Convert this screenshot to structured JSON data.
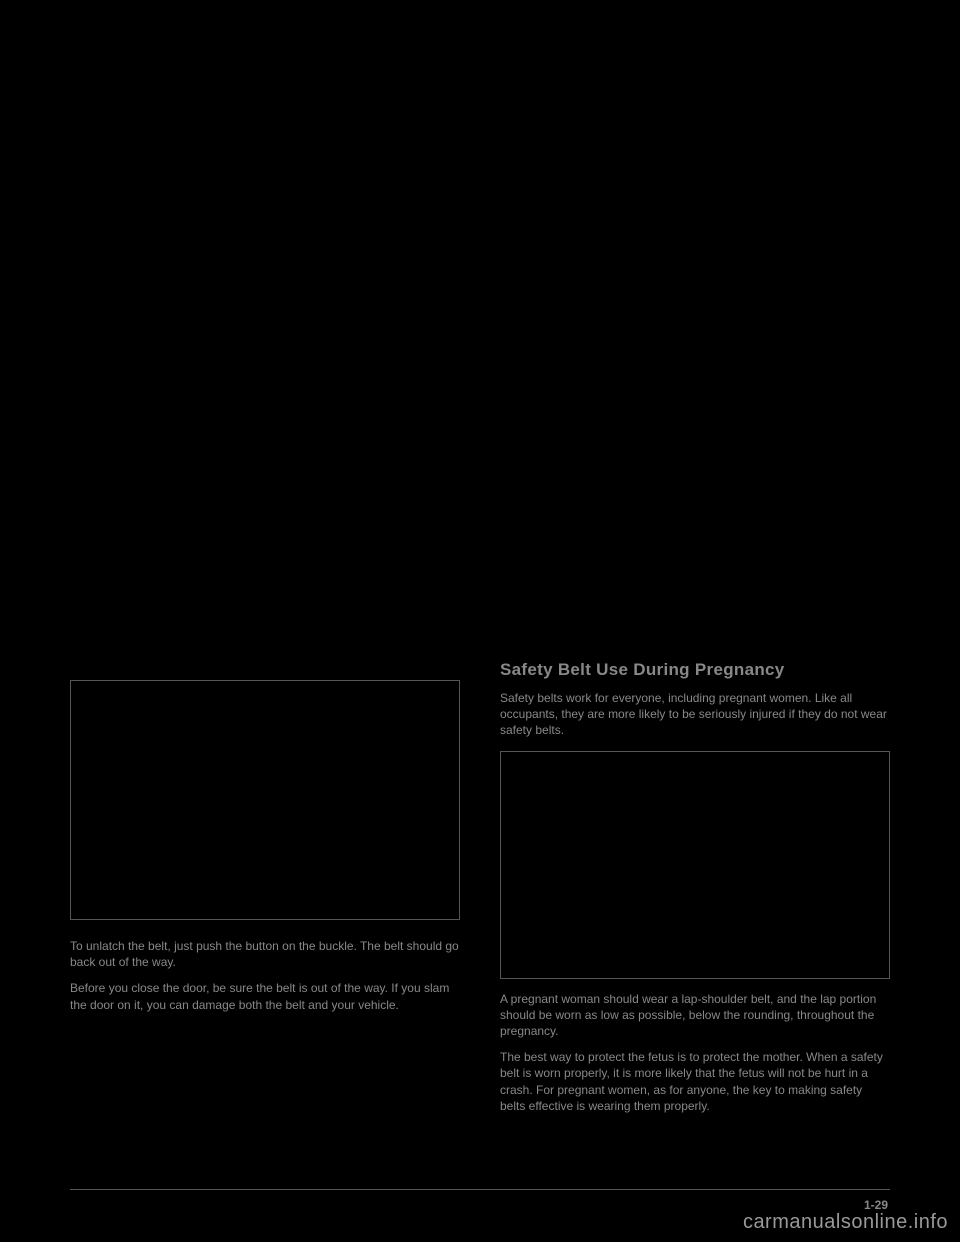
{
  "left_column": {
    "para1": "To unlatch the belt, just push the button on the buckle. The belt should go back out of the way.",
    "para2": "Before you close the door, be sure the belt is out of the way. If you slam the door on it, you can damage both the belt and your vehicle."
  },
  "right_column": {
    "heading": "Safety Belt Use During Pregnancy",
    "para1": "Safety belts work for everyone, including pregnant women. Like all occupants, they are more likely to be seriously injured if they do not wear safety belts.",
    "para2": "A pregnant woman should wear a lap-shoulder belt, and the lap portion should be worn as low as possible, below the rounding, throughout the pregnancy.",
    "para3": "The best way to protect the fetus is to protect the mother. When a safety belt is worn properly, it is more likely that the fetus will not be hurt in a crash. For pregnant women, as for anyone, the key to making safety belts effective is wearing them properly."
  },
  "page_number": "1-29",
  "watermark": "carmanualsonline.info"
}
